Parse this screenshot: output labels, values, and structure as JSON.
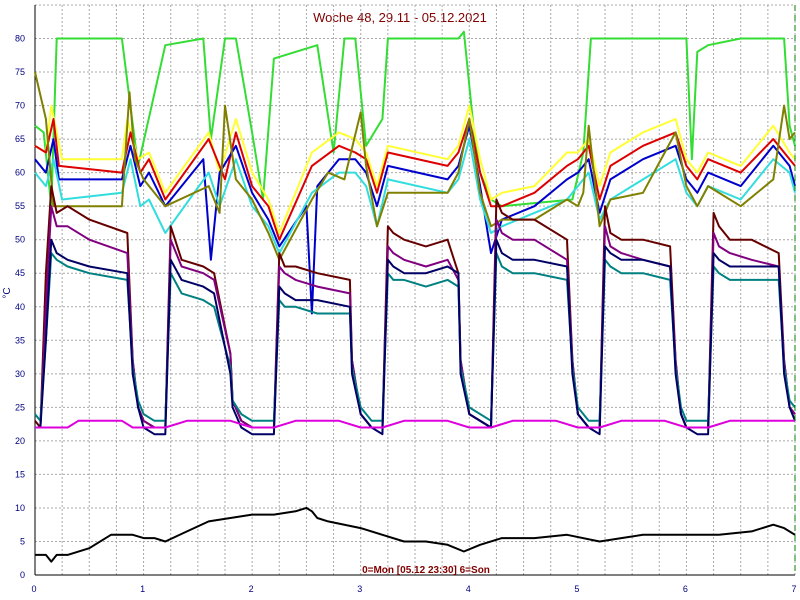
{
  "chart_data": {
    "type": "line",
    "title": "Woche 48, 29.11 - 05.12.2021",
    "ylabel": "°C",
    "xlabel": "",
    "annotation": "0=Mon [05.12 23:30] 6=Son",
    "xlim": [
      0,
      7
    ],
    "ylim": [
      0,
      85
    ],
    "grid": true,
    "x_ticks": [
      0,
      1,
      2,
      3,
      4,
      5,
      6,
      7
    ],
    "y_ticks": [
      0,
      5,
      10,
      15,
      20,
      25,
      30,
      35,
      40,
      45,
      50,
      55,
      60,
      65,
      70,
      75,
      80
    ],
    "colors": {
      "grid": "#a9a9a9",
      "axis_text": "#000080",
      "title": "#800000",
      "marker": "#008000"
    },
    "series": [
      {
        "color": "#33dd33",
        "x": [
          0,
          0.08,
          0.15,
          0.2,
          0.8,
          0.87,
          0.95,
          1.2,
          1.55,
          1.62,
          1.75,
          1.85,
          2.0,
          2.1,
          2.2,
          2.6,
          2.75,
          2.85,
          2.95,
          3.05,
          3.2,
          3.25,
          3.35,
          3.9,
          3.95,
          4.05,
          4.1,
          4.2,
          4.3,
          4.95,
          5.05,
          5.12,
          5.2,
          5.35,
          6.0,
          6.05,
          6.1,
          6.2,
          6.5,
          6.9,
          6.95,
          7.0
        ],
        "y": [
          67,
          66,
          55,
          80,
          80,
          71,
          61,
          79,
          80,
          65,
          80,
          80,
          66,
          56,
          77,
          79,
          63,
          80,
          80,
          64,
          68,
          80,
          80,
          80,
          81,
          65,
          60,
          56,
          55,
          56,
          63,
          80,
          80,
          80,
          80,
          62,
          78,
          79,
          80,
          80,
          67,
          64
        ]
      },
      {
        "color": "#ffff33",
        "x": [
          0,
          0.1,
          0.15,
          0.25,
          0.8,
          0.85,
          0.95,
          1.05,
          1.2,
          1.6,
          1.7,
          1.85,
          2.0,
          2.15,
          2.25,
          2.55,
          2.8,
          2.95,
          3.05,
          3.15,
          3.25,
          3.8,
          3.9,
          4.0,
          4.1,
          4.2,
          4.3,
          4.6,
          4.9,
          5.0,
          5.1,
          5.2,
          5.3,
          5.6,
          5.9,
          6.0,
          6.1,
          6.2,
          6.5,
          6.8,
          6.95,
          7.0
        ],
        "y": [
          64,
          63,
          70,
          62,
          62,
          68,
          62,
          63,
          57,
          66,
          60,
          68,
          60,
          56,
          51,
          63,
          66,
          65,
          63,
          58,
          64,
          62,
          64,
          70,
          62,
          56,
          57,
          58,
          63,
          63,
          65,
          58,
          63,
          66,
          68,
          62,
          60,
          63,
          61,
          67,
          63,
          62
        ]
      },
      {
        "color": "#dd0000",
        "x": [
          0,
          0.1,
          0.17,
          0.22,
          0.8,
          0.88,
          0.97,
          1.05,
          1.2,
          1.6,
          1.75,
          1.85,
          2.0,
          2.15,
          2.25,
          2.55,
          2.8,
          2.95,
          3.05,
          3.15,
          3.25,
          3.8,
          3.9,
          4.0,
          4.1,
          4.2,
          4.3,
          4.6,
          4.9,
          5.0,
          5.1,
          5.2,
          5.3,
          5.6,
          5.9,
          6.0,
          6.1,
          6.2,
          6.5,
          6.8,
          6.95,
          7.0
        ],
        "y": [
          64,
          63,
          68,
          61,
          60,
          66,
          60,
          62,
          56,
          65,
          59,
          66,
          58,
          55,
          50,
          61,
          64,
          63,
          62,
          57,
          63,
          61,
          63,
          68,
          60,
          55,
          55,
          57,
          61,
          62,
          64,
          56,
          61,
          64,
          66,
          61,
          59,
          62,
          60,
          65,
          62,
          61
        ]
      },
      {
        "color": "#0000cc",
        "x": [
          0,
          0.1,
          0.17,
          0.22,
          0.8,
          0.88,
          0.97,
          1.05,
          1.2,
          1.55,
          1.62,
          1.7,
          1.85,
          2.0,
          2.15,
          2.25,
          2.5,
          2.55,
          2.6,
          2.8,
          2.95,
          3.05,
          3.15,
          3.25,
          3.8,
          3.9,
          4.0,
          4.1,
          4.2,
          4.3,
          4.6,
          4.9,
          5.0,
          5.1,
          5.2,
          5.3,
          5.6,
          5.9,
          6.0,
          6.1,
          6.2,
          6.5,
          6.8,
          6.95,
          7.0
        ],
        "y": [
          62,
          60,
          65,
          59,
          59,
          64,
          58,
          60,
          55,
          62,
          47,
          60,
          64,
          57,
          53,
          49,
          55,
          39,
          58,
          62,
          62,
          60,
          55,
          61,
          59,
          61,
          67,
          58,
          48,
          53,
          55,
          59,
          60,
          62,
          54,
          59,
          62,
          64,
          59,
          57,
          60,
          58,
          64,
          61,
          58
        ]
      },
      {
        "color": "#33dddd",
        "x": [
          0,
          0.1,
          0.17,
          0.25,
          0.8,
          0.88,
          0.97,
          1.05,
          1.2,
          1.6,
          1.7,
          1.85,
          2.0,
          2.15,
          2.25,
          2.55,
          2.8,
          2.95,
          3.05,
          3.15,
          3.25,
          3.8,
          3.9,
          4.0,
          4.1,
          4.2,
          4.3,
          4.6,
          4.9,
          5.0,
          5.1,
          5.2,
          5.3,
          5.6,
          5.9,
          6.0,
          6.1,
          6.2,
          6.5,
          6.8,
          6.95,
          7.0
        ],
        "y": [
          60,
          58,
          62,
          56,
          57,
          62,
          55,
          56,
          51,
          60,
          55,
          62,
          55,
          52,
          48,
          57,
          60,
          60,
          58,
          52,
          59,
          57,
          59,
          65,
          56,
          51,
          52,
          54,
          56,
          58,
          60,
          53,
          56,
          59,
          62,
          57,
          55,
          58,
          56,
          62,
          60,
          57
        ]
      },
      {
        "color": "#808000",
        "x": [
          0,
          0.1,
          0.17,
          0.25,
          0.8,
          0.87,
          0.92,
          1.0,
          1.2,
          1.6,
          1.7,
          1.75,
          1.85,
          2.0,
          2.15,
          2.25,
          2.55,
          2.7,
          2.85,
          3.0,
          3.05,
          3.15,
          3.25,
          3.8,
          3.9,
          4.0,
          4.1,
          4.2,
          4.3,
          4.6,
          4.9,
          5.0,
          5.05,
          5.1,
          5.2,
          5.3,
          5.6,
          5.9,
          6.0,
          6.1,
          6.2,
          6.5,
          6.8,
          6.9,
          6.95,
          7.0
        ],
        "y": [
          75,
          68,
          55,
          55,
          55,
          72,
          62,
          59,
          55,
          58,
          54,
          70,
          59,
          56,
          51,
          47,
          56,
          60,
          59,
          69,
          61,
          52,
          57,
          57,
          60,
          68,
          57,
          52,
          53,
          53,
          56,
          55,
          57,
          67,
          52,
          56,
          57,
          66,
          58,
          55,
          58,
          55,
          59,
          70,
          65,
          66
        ]
      },
      {
        "color": "#660000",
        "x": [
          0,
          0.05,
          0.1,
          0.15,
          0.2,
          0.3,
          0.5,
          0.85,
          0.9,
          0.95,
          1.0,
          1.1,
          1.2,
          1.25,
          1.35,
          1.55,
          1.65,
          1.8,
          1.82,
          1.9,
          2.0,
          2.1,
          2.2,
          2.25,
          2.3,
          2.4,
          2.6,
          2.9,
          2.92,
          3.0,
          3.1,
          3.2,
          3.25,
          3.3,
          3.4,
          3.6,
          3.8,
          3.9,
          3.92,
          4.0,
          4.2,
          4.25,
          4.3,
          4.4,
          4.6,
          4.9,
          4.95,
          5.0,
          5.1,
          5.2,
          5.25,
          5.3,
          5.4,
          5.6,
          5.85,
          5.9,
          5.95,
          6.0,
          6.1,
          6.2,
          6.25,
          6.3,
          6.4,
          6.6,
          6.85,
          6.9,
          6.95,
          7.0
        ],
        "y": [
          23,
          22,
          45,
          58,
          54,
          55,
          53,
          51,
          32,
          25,
          23,
          22,
          22,
          52,
          47,
          46,
          45,
          33,
          26,
          23,
          22,
          22,
          22,
          48,
          46,
          46,
          45,
          44,
          32,
          24,
          22,
          22,
          52,
          51,
          50,
          49,
          50,
          45,
          32,
          24,
          22,
          56,
          54,
          53,
          53,
          50,
          32,
          24,
          22,
          22,
          55,
          51,
          50,
          50,
          49,
          32,
          24,
          22,
          22,
          22,
          54,
          52,
          50,
          50,
          48,
          32,
          25,
          24
        ]
      },
      {
        "color": "#800080",
        "x": [
          0,
          0.05,
          0.1,
          0.15,
          0.2,
          0.3,
          0.5,
          0.85,
          0.9,
          0.95,
          1.0,
          1.1,
          1.2,
          1.25,
          1.35,
          1.55,
          1.65,
          1.8,
          1.82,
          1.9,
          2.0,
          2.1,
          2.2,
          2.25,
          2.3,
          2.4,
          2.6,
          2.9,
          2.92,
          3.0,
          3.1,
          3.2,
          3.25,
          3.3,
          3.4,
          3.6,
          3.8,
          3.9,
          3.92,
          4.0,
          4.2,
          4.25,
          4.3,
          4.4,
          4.6,
          4.9,
          4.95,
          5.0,
          5.1,
          5.2,
          5.25,
          5.3,
          5.4,
          5.6,
          5.85,
          5.9,
          5.95,
          6.0,
          6.1,
          6.2,
          6.25,
          6.3,
          6.4,
          6.6,
          6.85,
          6.9,
          6.95,
          7.0
        ],
        "y": [
          22,
          22,
          40,
          55,
          52,
          52,
          50,
          48,
          32,
          25,
          23,
          22,
          22,
          50,
          46,
          45,
          44,
          33,
          26,
          23,
          22,
          22,
          22,
          46,
          45,
          44,
          43,
          42,
          32,
          24,
          22,
          22,
          49,
          48,
          47,
          46,
          47,
          44,
          32,
          24,
          22,
          53,
          51,
          50,
          50,
          47,
          32,
          24,
          22,
          22,
          52,
          49,
          48,
          47,
          46,
          32,
          24,
          22,
          22,
          22,
          51,
          49,
          48,
          47,
          46,
          32,
          25,
          24
        ]
      },
      {
        "color": "#008080",
        "x": [
          0,
          0.05,
          0.1,
          0.15,
          0.2,
          0.3,
          0.5,
          0.85,
          0.9,
          0.95,
          1.0,
          1.1,
          1.2,
          1.25,
          1.35,
          1.55,
          1.65,
          1.8,
          1.82,
          1.9,
          2.0,
          2.1,
          2.2,
          2.25,
          2.3,
          2.4,
          2.6,
          2.9,
          2.92,
          3.0,
          3.1,
          3.2,
          3.25,
          3.3,
          3.4,
          3.6,
          3.8,
          3.9,
          3.92,
          4.0,
          4.2,
          4.25,
          4.3,
          4.4,
          4.6,
          4.9,
          4.95,
          5.0,
          5.1,
          5.2,
          5.25,
          5.3,
          5.4,
          5.6,
          5.85,
          5.9,
          5.95,
          6.0,
          6.1,
          6.2,
          6.25,
          6.3,
          6.4,
          6.6,
          6.85,
          6.9,
          6.95,
          7.0
        ],
        "y": [
          24,
          23,
          35,
          48,
          47,
          46,
          45,
          44,
          31,
          26,
          24,
          23,
          23,
          45,
          42,
          41,
          40,
          31,
          26,
          24,
          23,
          23,
          23,
          41,
          40,
          40,
          39,
          39,
          31,
          25,
          23,
          23,
          45,
          44,
          44,
          43,
          44,
          43,
          31,
          25,
          23,
          48,
          46,
          45,
          45,
          44,
          31,
          25,
          23,
          23,
          47,
          46,
          45,
          45,
          44,
          31,
          25,
          23,
          23,
          23,
          46,
          45,
          44,
          44,
          44,
          31,
          26,
          25
        ]
      },
      {
        "color": "#000066",
        "x": [
          0,
          0.05,
          0.1,
          0.15,
          0.2,
          0.3,
          0.5,
          0.85,
          0.9,
          0.95,
          1.0,
          1.1,
          1.2,
          1.25,
          1.35,
          1.55,
          1.65,
          1.8,
          1.82,
          1.9,
          2.0,
          2.1,
          2.2,
          2.25,
          2.3,
          2.4,
          2.6,
          2.9,
          2.92,
          3.0,
          3.1,
          3.2,
          3.25,
          3.3,
          3.4,
          3.6,
          3.8,
          3.9,
          3.92,
          4.0,
          4.2,
          4.25,
          4.3,
          4.4,
          4.6,
          4.9,
          4.95,
          5.0,
          5.1,
          5.2,
          5.25,
          5.3,
          5.4,
          5.6,
          5.85,
          5.9,
          5.95,
          6.0,
          6.1,
          6.2,
          6.25,
          6.3,
          6.4,
          6.6,
          6.85,
          6.9,
          6.95,
          7.0
        ],
        "y": [
          22,
          22,
          35,
          50,
          48,
          47,
          46,
          45,
          30,
          25,
          22,
          21,
          21,
          47,
          44,
          43,
          42,
          30,
          25,
          22,
          21,
          21,
          21,
          43,
          42,
          41,
          41,
          40,
          30,
          24,
          22,
          21,
          47,
          46,
          45,
          45,
          46,
          45,
          30,
          24,
          22,
          50,
          48,
          47,
          47,
          46,
          30,
          24,
          22,
          21,
          49,
          48,
          47,
          47,
          46,
          30,
          24,
          22,
          21,
          21,
          48,
          47,
          46,
          46,
          46,
          30,
          25,
          23
        ]
      },
      {
        "color": "#dd00dd",
        "x": [
          0,
          0.3,
          0.4,
          0.8,
          0.9,
          1.2,
          1.4,
          1.8,
          2.0,
          2.2,
          2.4,
          2.8,
          3.0,
          3.2,
          3.4,
          3.8,
          4.0,
          4.2,
          4.4,
          4.8,
          5.0,
          5.2,
          5.4,
          5.8,
          6.0,
          6.2,
          6.4,
          6.8,
          7.0
        ],
        "y": [
          22,
          22,
          23,
          23,
          22,
          22,
          23,
          23,
          22,
          22,
          23,
          23,
          22,
          22,
          23,
          23,
          22,
          22,
          23,
          23,
          22,
          22,
          23,
          23,
          22,
          22,
          23,
          23,
          23
        ]
      },
      {
        "color": "#000000",
        "x": [
          0,
          0.1,
          0.15,
          0.2,
          0.3,
          0.5,
          0.7,
          0.9,
          1.0,
          1.1,
          1.2,
          1.4,
          1.6,
          1.8,
          2.0,
          2.2,
          2.4,
          2.5,
          2.55,
          2.6,
          2.7,
          3.0,
          3.2,
          3.4,
          3.6,
          3.8,
          3.95,
          4.1,
          4.3,
          4.6,
          4.9,
          5.2,
          5.4,
          5.6,
          5.8,
          6.0,
          6.3,
          6.6,
          6.8,
          6.9,
          7.0
        ],
        "y": [
          3,
          3,
          2,
          3,
          3,
          4,
          6,
          6,
          5.5,
          5.5,
          5,
          6.5,
          8,
          8.5,
          9,
          9,
          9.5,
          10,
          9.5,
          8.5,
          8,
          7,
          6,
          5,
          5,
          4.5,
          3.5,
          4.5,
          5.5,
          5.5,
          6,
          5,
          5.5,
          6,
          6,
          6,
          6,
          6.5,
          7.5,
          7,
          6
        ]
      }
    ]
  }
}
